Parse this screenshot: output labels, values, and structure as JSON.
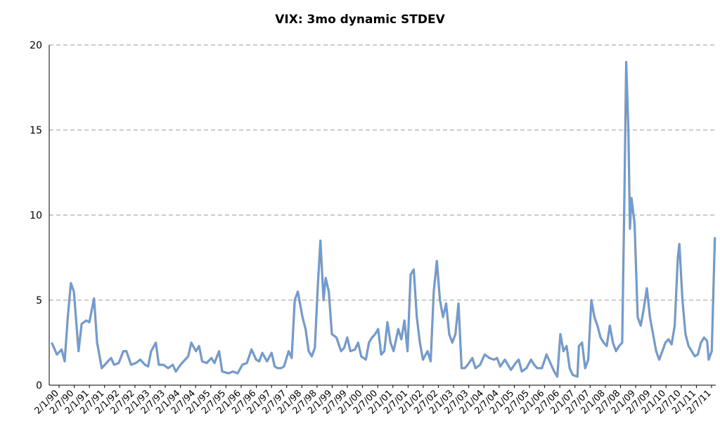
{
  "chart_data": {
    "type": "line",
    "title": "VIX: 3mo dynamic STDEV",
    "xlabel": "",
    "ylabel": "",
    "ylim": [
      0,
      20
    ],
    "yticks": [
      "0",
      "5",
      "10",
      "15",
      "20"
    ],
    "grid": "horizontal-dashed",
    "legend": "none",
    "x_tick_labels": [
      "2/1/90",
      "2/7/90",
      "2/1/91",
      "2/7/91",
      "2/1/92",
      "2/7/92",
      "2/1/93",
      "2/7/93",
      "2/1/94",
      "2/7/94",
      "2/1/95",
      "2/7/95",
      "2/1/96",
      "2/7/96",
      "2/1/97",
      "2/7/97",
      "2/1/98",
      "2/7/98",
      "2/1/99",
      "2/7/99",
      "2/1/00",
      "2/7/00",
      "2/1/01",
      "2/7/01",
      "2/1/02",
      "2/7/02",
      "2/1/03",
      "2/7/03",
      "2/1/04",
      "2/7/04",
      "2/1/05",
      "2/7/05",
      "2/1/06",
      "2/7/06",
      "2/1/07",
      "2/7/07",
      "2/1/08",
      "2/7/08",
      "2/1/09",
      "2/7/09",
      "2/1/10",
      "2/7/10",
      "2/1/11",
      "2/7/11"
    ],
    "series": [
      {
        "name": "",
        "color": "#6a9fe0",
        "points": [
          [
            1990.08,
            2.5
          ],
          [
            1990.25,
            1.8
          ],
          [
            1990.4,
            2.1
          ],
          [
            1990.5,
            1.4
          ],
          [
            1990.6,
            4.0
          ],
          [
            1990.7,
            6.0
          ],
          [
            1990.8,
            5.5
          ],
          [
            1990.95,
            2.0
          ],
          [
            1991.05,
            3.6
          ],
          [
            1991.2,
            3.8
          ],
          [
            1991.3,
            3.7
          ],
          [
            1991.45,
            5.1
          ],
          [
            1991.55,
            2.5
          ],
          [
            1991.7,
            1.0
          ],
          [
            1991.85,
            1.3
          ],
          [
            1992.0,
            1.6
          ],
          [
            1992.1,
            1.2
          ],
          [
            1992.25,
            1.3
          ],
          [
            1992.4,
            2.0
          ],
          [
            1992.5,
            2.0
          ],
          [
            1992.65,
            1.2
          ],
          [
            1992.8,
            1.3
          ],
          [
            1992.95,
            1.5
          ],
          [
            1993.1,
            1.2
          ],
          [
            1993.2,
            1.1
          ],
          [
            1993.3,
            2.0
          ],
          [
            1993.45,
            2.5
          ],
          [
            1993.55,
            1.2
          ],
          [
            1993.7,
            1.2
          ],
          [
            1993.85,
            1.0
          ],
          [
            1994.0,
            1.2
          ],
          [
            1994.1,
            0.8
          ],
          [
            1994.25,
            1.2
          ],
          [
            1994.4,
            1.5
          ],
          [
            1994.5,
            1.7
          ],
          [
            1994.6,
            2.5
          ],
          [
            1994.75,
            2.0
          ],
          [
            1994.85,
            2.3
          ],
          [
            1994.95,
            1.4
          ],
          [
            1995.1,
            1.3
          ],
          [
            1995.25,
            1.6
          ],
          [
            1995.35,
            1.3
          ],
          [
            1995.5,
            2.0
          ],
          [
            1995.6,
            0.8
          ],
          [
            1995.8,
            0.7
          ],
          [
            1995.95,
            0.8
          ],
          [
            1996.1,
            0.7
          ],
          [
            1996.25,
            1.2
          ],
          [
            1996.4,
            1.3
          ],
          [
            1996.55,
            2.1
          ],
          [
            1996.7,
            1.5
          ],
          [
            1996.8,
            1.4
          ],
          [
            1996.9,
            1.9
          ],
          [
            1997.05,
            1.4
          ],
          [
            1997.2,
            1.9
          ],
          [
            1997.3,
            1.1
          ],
          [
            1997.4,
            1.0
          ],
          [
            1997.5,
            1.0
          ],
          [
            1997.6,
            1.1
          ],
          [
            1997.75,
            2.0
          ],
          [
            1997.85,
            1.6
          ],
          [
            1997.95,
            5.0
          ],
          [
            1998.05,
            5.5
          ],
          [
            1998.2,
            4.0
          ],
          [
            1998.3,
            3.3
          ],
          [
            1998.4,
            2.0
          ],
          [
            1998.5,
            1.7
          ],
          [
            1998.6,
            2.2
          ],
          [
            1998.7,
            6.0
          ],
          [
            1998.78,
            8.5
          ],
          [
            1998.88,
            5.0
          ],
          [
            1998.95,
            6.3
          ],
          [
            1999.05,
            5.5
          ],
          [
            1999.15,
            3.0
          ],
          [
            1999.3,
            2.8
          ],
          [
            1999.45,
            2.0
          ],
          [
            1999.55,
            2.2
          ],
          [
            1999.65,
            2.8
          ],
          [
            1999.75,
            2.0
          ],
          [
            1999.9,
            2.1
          ],
          [
            2000.0,
            2.5
          ],
          [
            2000.1,
            1.7
          ],
          [
            2000.25,
            1.5
          ],
          [
            2000.35,
            2.5
          ],
          [
            2000.45,
            2.8
          ],
          [
            2000.55,
            3.0
          ],
          [
            2000.65,
            3.3
          ],
          [
            2000.75,
            1.8
          ],
          [
            2000.85,
            2.0
          ],
          [
            2000.95,
            3.7
          ],
          [
            2001.05,
            2.5
          ],
          [
            2001.15,
            2.0
          ],
          [
            2001.3,
            3.3
          ],
          [
            2001.4,
            2.7
          ],
          [
            2001.5,
            3.8
          ],
          [
            2001.6,
            2.0
          ],
          [
            2001.7,
            6.5
          ],
          [
            2001.8,
            6.8
          ],
          [
            2001.9,
            4.0
          ],
          [
            2002.0,
            2.5
          ],
          [
            2002.1,
            1.5
          ],
          [
            2002.25,
            2.0
          ],
          [
            2002.35,
            1.4
          ],
          [
            2002.45,
            5.5
          ],
          [
            2002.55,
            7.3
          ],
          [
            2002.65,
            5.0
          ],
          [
            2002.75,
            4.0
          ],
          [
            2002.85,
            4.8
          ],
          [
            2002.95,
            3.0
          ],
          [
            2003.05,
            2.5
          ],
          [
            2003.15,
            3.0
          ],
          [
            2003.25,
            4.8
          ],
          [
            2003.35,
            1.0
          ],
          [
            2003.45,
            1.0
          ],
          [
            2003.55,
            1.2
          ],
          [
            2003.7,
            1.6
          ],
          [
            2003.8,
            1.0
          ],
          [
            2003.95,
            1.2
          ],
          [
            2004.1,
            1.8
          ],
          [
            2004.25,
            1.6
          ],
          [
            2004.4,
            1.5
          ],
          [
            2004.5,
            1.6
          ],
          [
            2004.6,
            1.1
          ],
          [
            2004.75,
            1.5
          ],
          [
            2004.85,
            1.2
          ],
          [
            2004.95,
            0.9
          ],
          [
            2005.1,
            1.3
          ],
          [
            2005.2,
            1.5
          ],
          [
            2005.3,
            0.8
          ],
          [
            2005.45,
            1.0
          ],
          [
            2005.6,
            1.5
          ],
          [
            2005.7,
            1.2
          ],
          [
            2005.8,
            1.0
          ],
          [
            2005.95,
            1.0
          ],
          [
            2006.1,
            1.8
          ],
          [
            2006.25,
            1.2
          ],
          [
            2006.35,
            0.8
          ],
          [
            2006.45,
            0.5
          ],
          [
            2006.55,
            3.0
          ],
          [
            2006.65,
            2.0
          ],
          [
            2006.75,
            2.3
          ],
          [
            2006.85,
            1.0
          ],
          [
            2006.95,
            0.6
          ],
          [
            2007.1,
            0.5
          ],
          [
            2007.15,
            2.3
          ],
          [
            2007.25,
            2.5
          ],
          [
            2007.35,
            1.0
          ],
          [
            2007.45,
            1.5
          ],
          [
            2007.55,
            5.0
          ],
          [
            2007.65,
            4.0
          ],
          [
            2007.75,
            3.5
          ],
          [
            2007.85,
            2.8
          ],
          [
            2007.95,
            2.5
          ],
          [
            2008.05,
            2.3
          ],
          [
            2008.15,
            3.5
          ],
          [
            2008.25,
            2.5
          ],
          [
            2008.35,
            2.0
          ],
          [
            2008.45,
            2.3
          ],
          [
            2008.55,
            2.5
          ],
          [
            2008.62,
            11.0
          ],
          [
            2008.68,
            19.0
          ],
          [
            2008.75,
            15.0
          ],
          [
            2008.8,
            9.2
          ],
          [
            2008.85,
            11.0
          ],
          [
            2008.95,
            9.5
          ],
          [
            2009.05,
            4.0
          ],
          [
            2009.15,
            3.5
          ],
          [
            2009.25,
            4.5
          ],
          [
            2009.35,
            5.7
          ],
          [
            2009.45,
            4.0
          ],
          [
            2009.55,
            3.0
          ],
          [
            2009.65,
            2.0
          ],
          [
            2009.75,
            1.5
          ],
          [
            2009.85,
            2.0
          ],
          [
            2009.95,
            2.5
          ],
          [
            2010.05,
            2.7
          ],
          [
            2010.15,
            2.4
          ],
          [
            2010.25,
            3.5
          ],
          [
            2010.35,
            7.5
          ],
          [
            2010.4,
            8.3
          ],
          [
            2010.5,
            5.0
          ],
          [
            2010.6,
            3.0
          ],
          [
            2010.7,
            2.3
          ],
          [
            2010.8,
            2.0
          ],
          [
            2010.9,
            1.7
          ],
          [
            2011.0,
            1.8
          ],
          [
            2011.1,
            2.5
          ],
          [
            2011.2,
            2.8
          ],
          [
            2011.3,
            2.6
          ],
          [
            2011.35,
            1.5
          ],
          [
            2011.45,
            2.0
          ],
          [
            2011.55,
            8.7
          ]
        ]
      }
    ]
  }
}
